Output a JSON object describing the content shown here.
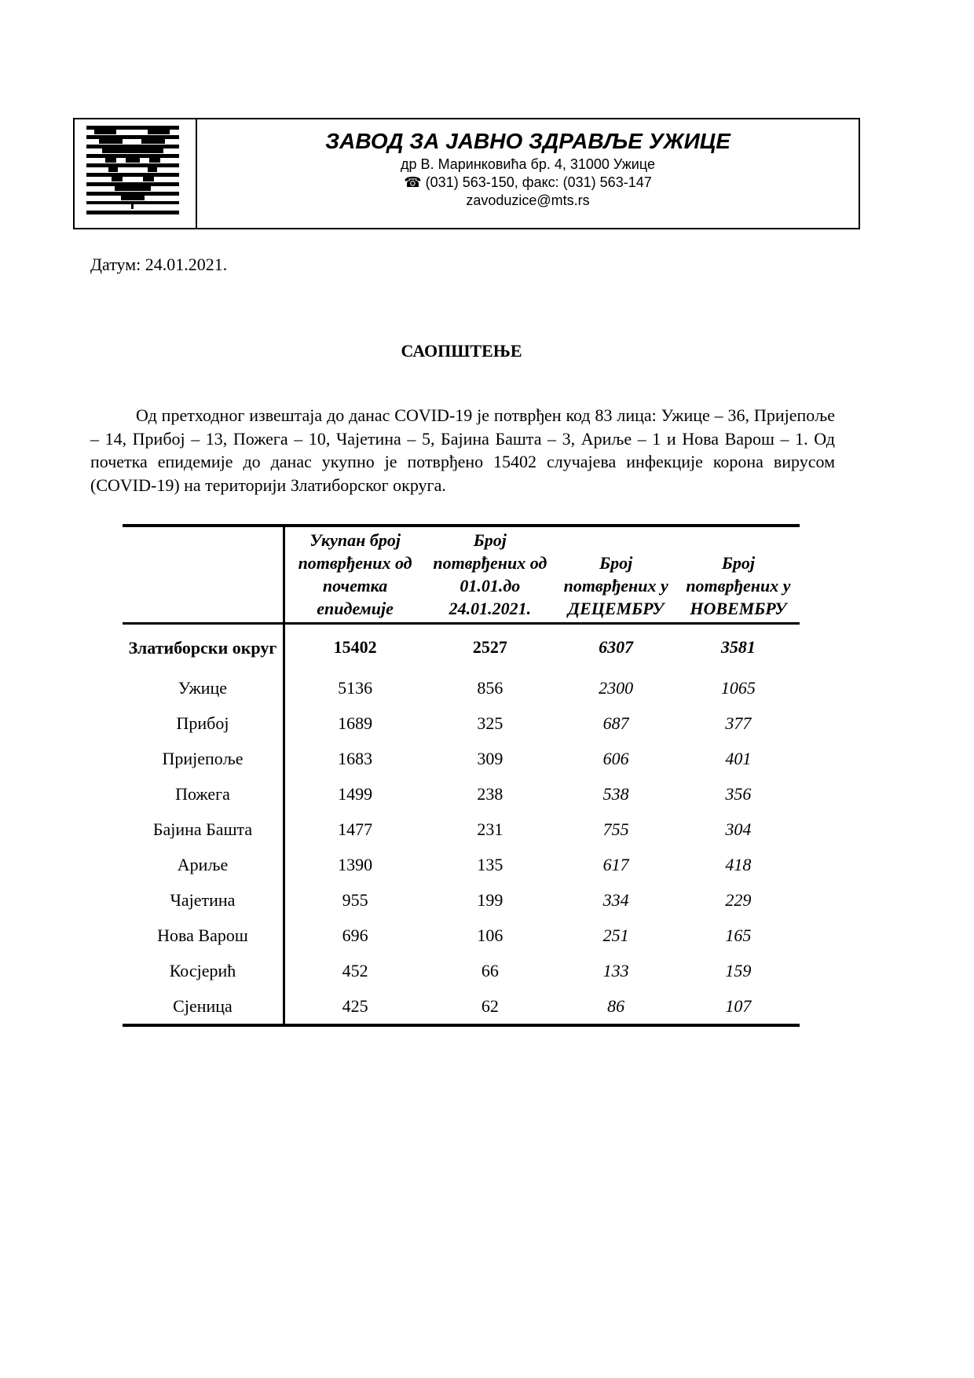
{
  "header": {
    "organization": "ЗАВОД ЗА ЈАВНО ЗДРАВЉЕ УЖИЦЕ",
    "address": "др В. Маринковића бр. 4, 31000 Ужице",
    "phone_icon": "telephone-icon",
    "phone": "(031) 563-150, факс: (031) 563-147",
    "email": "zavoduzice@mts.rs"
  },
  "date": "Датум: 24.01.2021.",
  "title": "САОПШТЕЊЕ",
  "paragraph": "Од претходног извештаја до данас COVID-19 је потврђен код 83 лица: Ужице – 36, Пријепоље – 14, Прибој – 13, Пожега – 10, Чајетина – 5, Бајина Башта – 3, Ариље – 1 и Нова Варош – 1. Од почетка епидемије до данас укупно је потврђено 15402 случајева инфекције корона вирусом (COVID-19) на територији Златиборског округа.",
  "table": {
    "headers": [
      "",
      "Укупан број потврђених од почетка епидемије",
      "Број потврђених од 01.01.до 24.01.2021.",
      "Број потврђених у ДЕЦЕМБРУ",
      "Број потврђених у НОВЕМБРУ"
    ],
    "total": [
      "Златиборски округ",
      "15402",
      "2527",
      "6307",
      "3581"
    ],
    "rows": [
      [
        "Ужице",
        "5136",
        "856",
        "2300",
        "1065"
      ],
      [
        "Прибој",
        "1689",
        "325",
        "687",
        "377"
      ],
      [
        "Пријепоље",
        "1683",
        "309",
        "606",
        "401"
      ],
      [
        "Пожега",
        "1499",
        "238",
        "538",
        "356"
      ],
      [
        "Бајина Башта",
        "1477",
        "231",
        "755",
        "304"
      ],
      [
        "Ариље",
        "1390",
        "135",
        "617",
        "418"
      ],
      [
        "Чајетина",
        "955",
        "199",
        "334",
        "229"
      ],
      [
        "Нова Варош",
        "696",
        "106",
        "251",
        "165"
      ],
      [
        "Косјерић",
        "452",
        "66",
        "133",
        "159"
      ],
      [
        "Сјеница",
        "425",
        "62",
        "86",
        "107"
      ]
    ]
  }
}
